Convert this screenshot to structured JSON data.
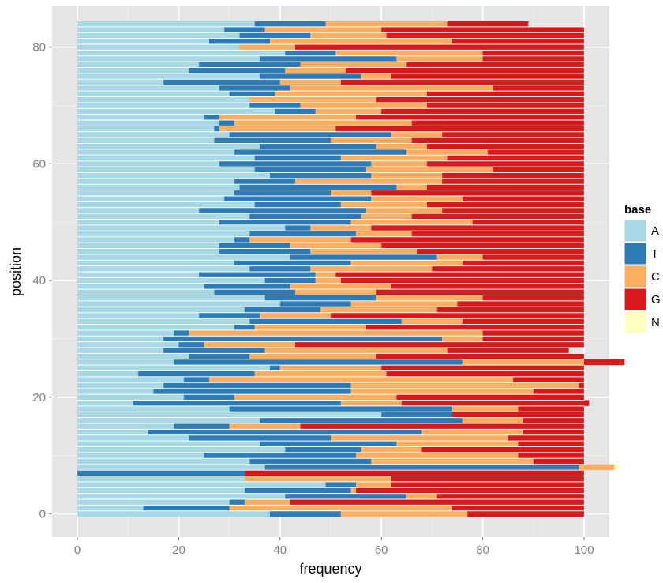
{
  "chart_data": {
    "type": "bar",
    "orientation": "horizontal",
    "stacked": true,
    "xlabel": "frequency",
    "ylabel": "position",
    "xlim": [
      -5,
      105
    ],
    "ylim": [
      -4,
      87
    ],
    "x_ticks": [
      0,
      20,
      40,
      60,
      80,
      100
    ],
    "y_ticks": [
      0,
      20,
      40,
      60,
      80
    ],
    "grid": true,
    "legend": {
      "title": "base",
      "position": "right",
      "entries": [
        {
          "label": "A",
          "color": "#a6d8e6"
        },
        {
          "label": "T",
          "color": "#2c7bb6"
        },
        {
          "label": "C",
          "color": "#fdae61"
        },
        {
          "label": "G",
          "color": "#d7191c"
        },
        {
          "label": "N",
          "color": "#ffffbf"
        }
      ]
    },
    "positions": [
      0,
      1,
      2,
      3,
      4,
      5,
      6,
      7,
      8,
      9,
      10,
      11,
      12,
      13,
      14,
      15,
      16,
      17,
      18,
      19,
      20,
      21,
      22,
      23,
      24,
      25,
      26,
      27,
      28,
      29,
      30,
      31,
      32,
      33,
      34,
      35,
      36,
      37,
      38,
      39,
      40,
      41,
      42,
      43,
      44,
      45,
      46,
      47,
      48,
      49,
      50,
      51,
      52,
      53,
      54,
      55,
      56,
      57,
      58,
      59,
      60,
      61,
      62,
      63,
      64,
      65,
      66,
      67,
      68,
      69,
      70,
      71,
      72,
      73,
      74,
      75,
      76,
      77,
      78,
      79,
      80,
      81,
      82,
      83,
      84
    ],
    "series": [
      {
        "name": "A",
        "values": [
          38,
          13,
          30,
          41,
          33,
          49,
          33,
          0,
          37,
          34,
          25,
          41,
          36,
          22,
          14,
          19,
          36,
          60,
          30,
          11,
          21,
          15,
          17,
          21,
          12,
          38,
          19,
          22,
          17,
          20,
          17,
          19,
          31,
          34,
          24,
          33,
          40,
          37,
          27,
          25,
          37,
          24,
          34,
          31,
          42,
          28,
          28,
          31,
          34,
          41,
          28,
          34,
          24,
          35,
          29,
          31,
          32,
          31,
          38,
          35,
          28,
          35,
          31,
          36,
          27,
          30,
          27,
          28,
          25,
          39,
          34,
          34,
          30,
          28,
          17,
          36,
          22,
          24,
          36,
          41,
          32,
          26,
          32,
          29,
          35
        ]
      },
      {
        "name": "T",
        "values": [
          14,
          17,
          3,
          24,
          21,
          6,
          0,
          33,
          62,
          24,
          30,
          15,
          27,
          28,
          54,
          11,
          40,
          14,
          44,
          41,
          10,
          39,
          37,
          5,
          23,
          2,
          57,
          12,
          20,
          5,
          55,
          3,
          4,
          30,
          12,
          15,
          14,
          22,
          16,
          17,
          10,
          23,
          12,
          23,
          29,
          18,
          14,
          3,
          21,
          5,
          26,
          22,
          33,
          17,
          29,
          19,
          31,
          12,
          20,
          22,
          30,
          17,
          34,
          23,
          23,
          32,
          1,
          3,
          3,
          8,
          10,
          0,
          9,
          14,
          23,
          20,
          19,
          20,
          27,
          10,
          0,
          12,
          14,
          8,
          14
        ]
      },
      {
        "name": "C",
        "values": [
          25,
          44,
          9,
          6,
          1,
          7,
          29,
          0,
          7,
          32,
          32,
          12,
          24,
          35,
          20,
          14,
          12,
          0,
          13,
          12,
          32,
          36,
          45,
          60,
          26,
          20,
          32,
          25,
          36,
          18,
          8,
          58,
          22,
          12,
          14,
          23,
          21,
          21,
          16,
          20,
          5,
          4,
          24,
          22,
          9,
          21,
          18,
          20,
          11,
          12,
          24,
          10,
          15,
          17,
          18,
          8,
          6,
          29,
          14,
          25,
          11,
          21,
          16,
          10,
          16,
          10,
          23,
          35,
          27,
          13,
          25,
          25,
          30,
          40,
          12,
          6,
          12,
          21,
          17,
          29,
          11,
          36,
          15,
          23,
          24
        ]
      },
      {
        "name": "G",
        "values": [
          23,
          26,
          58,
          29,
          45,
          38,
          38,
          67,
          0,
          10,
          13,
          32,
          13,
          15,
          12,
          56,
          12,
          26,
          13,
          37,
          37,
          10,
          1,
          14,
          39,
          40,
          -8,
          41,
          24,
          57,
          20,
          20,
          43,
          24,
          50,
          29,
          25,
          20,
          41,
          38,
          48,
          49,
          30,
          24,
          20,
          33,
          40,
          46,
          34,
          42,
          22,
          34,
          28,
          31,
          24,
          42,
          31,
          28,
          28,
          18,
          31,
          27,
          19,
          31,
          34,
          28,
          49,
          34,
          45,
          40,
          31,
          41,
          31,
          18,
          48,
          38,
          47,
          35,
          20,
          20,
          57,
          26,
          39,
          40,
          16
        ]
      },
      {
        "name": "N",
        "values": [
          0,
          0,
          0,
          0,
          0,
          0,
          0,
          0,
          1,
          0,
          0,
          0,
          0,
          0,
          0,
          0,
          0,
          0,
          0,
          0,
          0,
          0,
          0,
          0,
          0,
          0,
          0,
          0,
          0,
          0,
          0,
          0,
          0,
          0,
          0,
          0,
          0,
          0,
          0,
          0,
          0,
          0,
          0,
          0,
          0,
          0,
          0,
          0,
          0,
          0,
          0,
          0,
          0,
          0,
          0,
          0,
          0,
          0,
          0,
          0,
          0,
          0,
          0,
          0,
          0,
          0,
          0,
          0,
          0,
          0,
          0,
          0,
          0,
          0,
          0,
          0,
          0,
          0,
          0,
          0,
          0,
          0,
          0,
          0,
          0
        ]
      }
    ]
  },
  "colors": {
    "panel_background": "#e5e5e5",
    "grid_major": "#ffffff",
    "grid_minor": "#f2f2f2",
    "tick_text": "#7f7f7f",
    "row_separator": "#ffffff"
  }
}
